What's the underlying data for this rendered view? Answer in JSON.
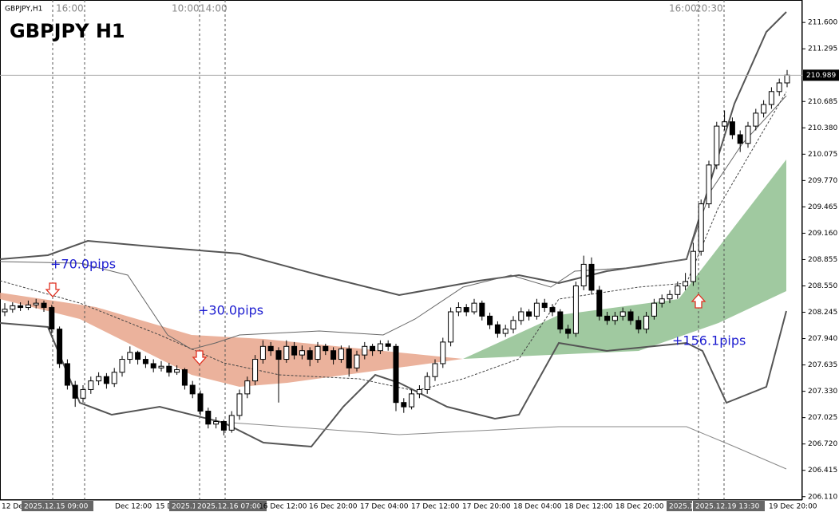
{
  "chart_data": {
    "type": "candlestick",
    "symbol_label": "GBPJPY,H1",
    "title": "GBPJPY  H1",
    "top_time_labels": [
      "16:00",
      "10:00",
      "14:00",
      "16:00",
      "20:30"
    ],
    "annotations": [
      "+70.0pips",
      "+30.0pips",
      "+156.1pips"
    ],
    "current_price": {
      "value": 210.989,
      "label": "210.989"
    },
    "x_labels": [
      "12 Dec",
      "2025.12.15 09:00",
      "Dec 12:00",
      "15 D",
      "2025.1",
      "2025.12.16 07:00",
      "16 Dec 12:00",
      "16 Dec 20:00",
      "17 Dec 04:00",
      "17 Dec 12:00",
      "17 Dec 20:00",
      "18 Dec 04:00",
      "18 Dec 12:00",
      "18 Dec 20:00",
      "2025.1",
      "2025.12.19 13:30",
      "19 Dec 20:00"
    ],
    "ylim": [
      206.08,
      211.86
    ],
    "yticks": [
      {
        "value": 211.6,
        "label": "211.600"
      },
      {
        "value": 211.295,
        "label": "211.295"
      },
      {
        "value": 210.685,
        "label": "210.685"
      },
      {
        "value": 210.38,
        "label": "210.380"
      },
      {
        "value": 210.075,
        "label": "210.075"
      },
      {
        "value": 209.77,
        "label": "209.770"
      },
      {
        "value": 209.465,
        "label": "209.465"
      },
      {
        "value": 209.16,
        "label": "209.160"
      },
      {
        "value": 208.855,
        "label": "208.855"
      },
      {
        "value": 208.55,
        "label": "208.550"
      },
      {
        "value": 208.245,
        "label": "208.245"
      },
      {
        "value": 207.94,
        "label": "207.940"
      },
      {
        "value": 207.635,
        "label": "207.635"
      },
      {
        "value": 207.33,
        "label": "207.330"
      },
      {
        "value": 207.025,
        "label": "207.025"
      },
      {
        "value": 206.72,
        "label": "206.720"
      },
      {
        "value": 206.415,
        "label": "206.415"
      },
      {
        "value": 206.11,
        "label": "206.110"
      }
    ],
    "candles": [
      [
        208.25,
        208.35,
        208.2,
        208.28
      ],
      [
        208.28,
        208.36,
        208.24,
        208.32
      ],
      [
        208.32,
        208.36,
        208.26,
        208.3
      ],
      [
        208.3,
        208.38,
        208.27,
        208.33
      ],
      [
        208.33,
        208.4,
        208.29,
        208.35
      ],
      [
        208.35,
        208.38,
        208.25,
        208.3
      ],
      [
        208.3,
        208.33,
        208.0,
        208.05
      ],
      [
        208.05,
        208.08,
        207.6,
        207.65
      ],
      [
        207.65,
        207.7,
        207.35,
        207.4
      ],
      [
        207.4,
        207.45,
        207.15,
        207.25
      ],
      [
        207.25,
        207.4,
        207.2,
        207.35
      ],
      [
        207.35,
        207.5,
        207.3,
        207.45
      ],
      [
        207.45,
        207.55,
        207.4,
        207.5
      ],
      [
        207.5,
        207.54,
        207.36,
        207.42
      ],
      [
        207.42,
        207.6,
        207.38,
        207.55
      ],
      [
        207.55,
        207.74,
        207.5,
        207.7
      ],
      [
        207.7,
        207.85,
        207.65,
        207.78
      ],
      [
        207.78,
        207.8,
        207.64,
        207.7
      ],
      [
        207.7,
        207.74,
        207.6,
        207.65
      ],
      [
        207.65,
        207.7,
        207.55,
        207.6
      ],
      [
        207.6,
        207.68,
        207.56,
        207.62
      ],
      [
        207.62,
        207.66,
        207.5,
        207.55
      ],
      [
        207.55,
        207.63,
        207.52,
        207.58
      ],
      [
        207.58,
        207.6,
        207.35,
        207.4
      ],
      [
        207.4,
        207.45,
        207.25,
        207.3
      ],
      [
        207.3,
        207.34,
        207.05,
        207.1
      ],
      [
        207.1,
        207.14,
        206.9,
        206.95
      ],
      [
        206.95,
        207.03,
        206.9,
        206.98
      ],
      [
        206.98,
        207.0,
        206.82,
        206.88
      ],
      [
        206.88,
        207.1,
        206.85,
        207.05
      ],
      [
        207.05,
        207.35,
        207.0,
        207.3
      ],
      [
        207.3,
        207.5,
        207.25,
        207.45
      ],
      [
        207.45,
        207.75,
        207.4,
        207.7
      ],
      [
        207.7,
        207.92,
        207.65,
        207.85
      ],
      [
        207.85,
        207.9,
        207.74,
        207.8
      ],
      [
        207.8,
        207.84,
        207.2,
        207.7
      ],
      [
        207.7,
        207.92,
        207.66,
        207.85
      ],
      [
        207.85,
        207.9,
        207.7,
        207.75
      ],
      [
        207.75,
        207.86,
        207.7,
        207.8
      ],
      [
        207.8,
        207.84,
        207.62,
        207.7
      ],
      [
        207.7,
        207.9,
        207.66,
        207.85
      ],
      [
        207.85,
        207.88,
        207.75,
        207.8
      ],
      [
        207.8,
        207.84,
        207.64,
        207.7
      ],
      [
        207.7,
        207.86,
        207.66,
        207.82
      ],
      [
        207.82,
        207.86,
        207.5,
        207.6
      ],
      [
        207.6,
        207.8,
        207.56,
        207.75
      ],
      [
        207.75,
        207.9,
        207.7,
        207.85
      ],
      [
        207.85,
        207.88,
        207.74,
        207.8
      ],
      [
        207.8,
        207.92,
        207.76,
        207.88
      ],
      [
        207.88,
        207.92,
        207.8,
        207.85
      ],
      [
        207.85,
        207.88,
        207.1,
        207.2
      ],
      [
        207.2,
        207.25,
        207.08,
        207.15
      ],
      [
        207.15,
        207.35,
        207.12,
        207.3
      ],
      [
        207.3,
        207.4,
        207.25,
        207.35
      ],
      [
        207.35,
        207.55,
        207.3,
        207.5
      ],
      [
        207.5,
        207.7,
        207.45,
        207.65
      ],
      [
        207.65,
        207.95,
        207.6,
        207.9
      ],
      [
        207.9,
        208.3,
        207.85,
        208.25
      ],
      [
        208.25,
        208.36,
        208.2,
        208.3
      ],
      [
        208.3,
        208.34,
        208.2,
        208.25
      ],
      [
        208.25,
        208.4,
        208.22,
        208.35
      ],
      [
        208.35,
        208.38,
        208.15,
        208.2
      ],
      [
        208.2,
        208.24,
        208.05,
        208.1
      ],
      [
        208.1,
        208.14,
        207.95,
        208.0
      ],
      [
        208.0,
        208.1,
        207.96,
        208.05
      ],
      [
        208.05,
        208.2,
        208.0,
        208.15
      ],
      [
        208.15,
        208.3,
        208.1,
        208.25
      ],
      [
        208.25,
        208.28,
        208.15,
        208.2
      ],
      [
        208.2,
        208.4,
        208.16,
        208.35
      ],
      [
        208.35,
        208.4,
        208.25,
        208.3
      ],
      [
        208.3,
        208.34,
        208.2,
        208.25
      ],
      [
        208.25,
        208.28,
        208.0,
        208.05
      ],
      [
        208.05,
        208.1,
        207.94,
        208.0
      ],
      [
        208.0,
        208.6,
        207.96,
        208.55
      ],
      [
        208.55,
        208.9,
        208.5,
        208.8
      ],
      [
        208.8,
        208.88,
        208.45,
        208.5
      ],
      [
        208.5,
        208.55,
        208.15,
        208.2
      ],
      [
        208.2,
        208.25,
        208.1,
        208.15
      ],
      [
        208.15,
        208.25,
        208.1,
        208.2
      ],
      [
        208.2,
        208.3,
        208.15,
        208.25
      ],
      [
        208.25,
        208.28,
        208.1,
        208.15
      ],
      [
        208.15,
        208.2,
        208.0,
        208.05
      ],
      [
        208.05,
        208.25,
        208.0,
        208.2
      ],
      [
        208.2,
        208.4,
        208.16,
        208.35
      ],
      [
        208.35,
        208.45,
        208.3,
        208.4
      ],
      [
        208.4,
        208.5,
        208.35,
        208.45
      ],
      [
        208.45,
        208.6,
        208.4,
        208.55
      ],
      [
        208.55,
        208.7,
        208.5,
        208.6
      ],
      [
        208.6,
        209.05,
        208.55,
        208.95
      ],
      [
        208.95,
        209.55,
        208.9,
        209.5
      ],
      [
        209.5,
        210.0,
        209.45,
        209.95
      ],
      [
        209.95,
        210.45,
        209.9,
        210.4
      ],
      [
        210.4,
        210.58,
        210.35,
        210.45
      ],
      [
        210.45,
        210.5,
        210.25,
        210.3
      ],
      [
        210.3,
        210.35,
        210.1,
        210.2
      ],
      [
        210.2,
        210.45,
        210.15,
        210.4
      ],
      [
        210.4,
        210.6,
        210.35,
        210.55
      ],
      [
        210.55,
        210.7,
        210.5,
        210.65
      ],
      [
        210.65,
        210.85,
        210.6,
        210.8
      ],
      [
        210.8,
        210.95,
        210.75,
        210.9
      ],
      [
        210.9,
        211.05,
        210.85,
        210.99
      ]
    ]
  }
}
